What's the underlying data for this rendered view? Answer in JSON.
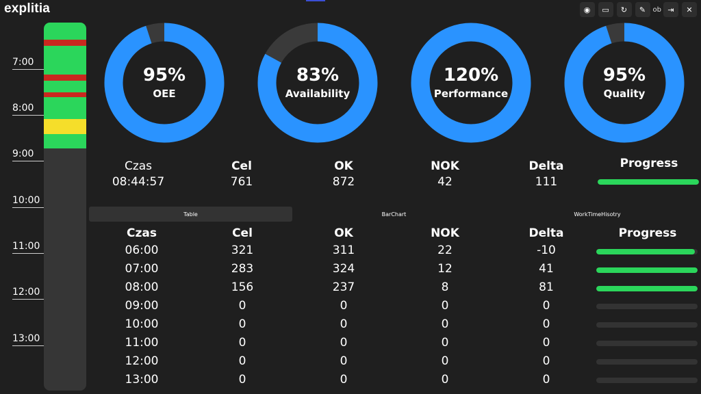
{
  "app": {
    "logo": "explitia"
  },
  "toolbar": {
    "buttons": [
      {
        "icon": "globe-icon",
        "glyph": "◉"
      },
      {
        "icon": "keyboard-icon",
        "glyph": "▭"
      },
      {
        "icon": "refresh-icon",
        "glyph": "↻"
      },
      {
        "icon": "edit-icon",
        "glyph": "✎"
      }
    ],
    "user": "ob",
    "logout_glyph": "⇥",
    "close_glyph": "✕"
  },
  "timeline": {
    "labels": [
      "7:00",
      "8:00",
      "9:00",
      "10:00",
      "11:00",
      "12:00",
      "13:00"
    ],
    "colors": {
      "ok": "#2bd65b",
      "stop": "#c9281f",
      "warn": "#f5de2a",
      "empty": "#363636"
    }
  },
  "gauges": [
    {
      "value": "95%",
      "label": "OEE",
      "fraction": 0.95
    },
    {
      "value": "83%",
      "label": "Availability",
      "fraction": 0.83
    },
    {
      "value": "120%",
      "label": "Performance",
      "fraction": 1.0
    },
    {
      "value": "95%",
      "label": "Quality",
      "fraction": 0.95
    }
  ],
  "gauge_colors": {
    "fill": "#2a93ff",
    "track": "#3a3a3a"
  },
  "summary": {
    "czas_label": "Czas",
    "czas_value": "08:44:57",
    "cel_label": "Cel",
    "cel_value": "761",
    "ok_label": "OK",
    "ok_value": "872",
    "nok_label": "NOK",
    "nok_value": "42",
    "delta_label": "Delta",
    "delta_value": "111",
    "progress_label": "Progress",
    "progress_fraction": 1.0
  },
  "tabs": [
    {
      "label": "Table",
      "active": true
    },
    {
      "label": "BarChart",
      "active": false
    },
    {
      "label": "WorkTimeHisotry",
      "active": false
    }
  ],
  "table": {
    "headers": [
      "Czas",
      "Cel",
      "OK",
      "NOK",
      "Delta",
      "Progress"
    ],
    "rows": [
      {
        "czas": "06:00",
        "cel": "321",
        "ok": "311",
        "nok": "22",
        "delta": "-10",
        "progress": 0.97
      },
      {
        "czas": "07:00",
        "cel": "283",
        "ok": "324",
        "nok": "12",
        "delta": "41",
        "progress": 1.0
      },
      {
        "czas": "08:00",
        "cel": "156",
        "ok": "237",
        "nok": "8",
        "delta": "81",
        "progress": 1.0
      },
      {
        "czas": "09:00",
        "cel": "0",
        "ok": "0",
        "nok": "0",
        "delta": "0",
        "progress": 0
      },
      {
        "czas": "10:00",
        "cel": "0",
        "ok": "0",
        "nok": "0",
        "delta": "0",
        "progress": 0
      },
      {
        "czas": "11:00",
        "cel": "0",
        "ok": "0",
        "nok": "0",
        "delta": "0",
        "progress": 0
      },
      {
        "czas": "12:00",
        "cel": "0",
        "ok": "0",
        "nok": "0",
        "delta": "0",
        "progress": 0
      },
      {
        "czas": "13:00",
        "cel": "0",
        "ok": "0",
        "nok": "0",
        "delta": "0",
        "progress": 0
      }
    ]
  }
}
